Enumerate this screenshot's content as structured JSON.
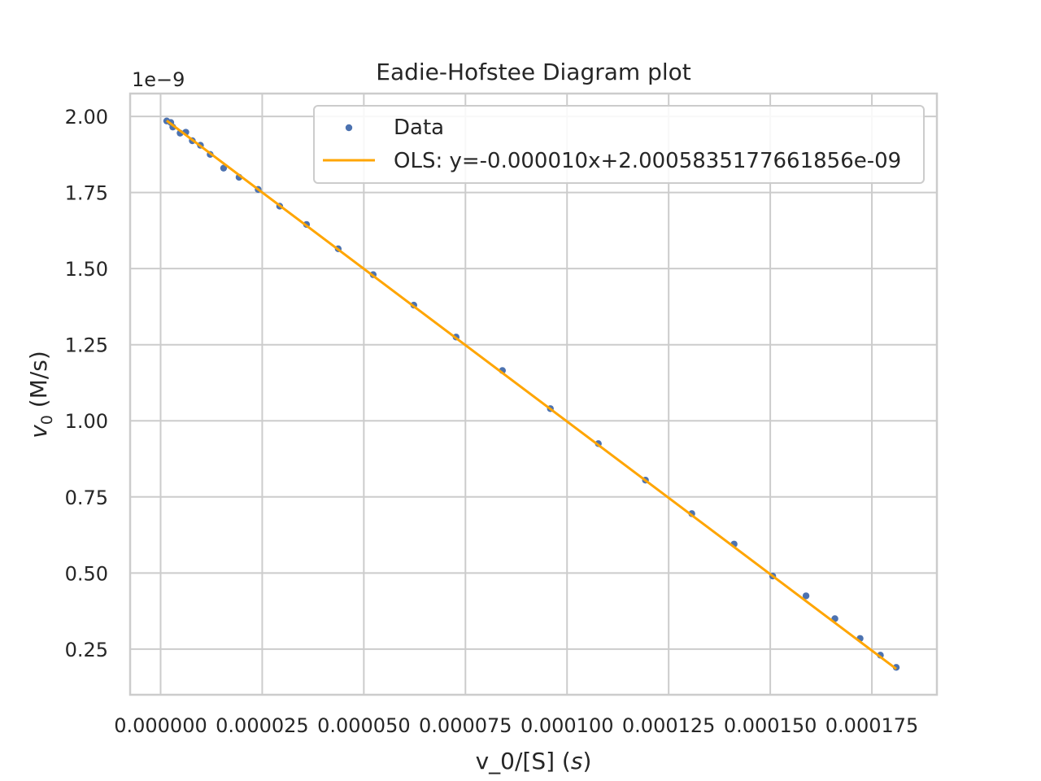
{
  "chart_data": {
    "type": "scatter",
    "title": "Eadie-Hofstee Diagram plot",
    "xlabel": "v_0/[S] ($s$)",
    "xlabel_parts": {
      "pre": "v_0/[S] (",
      "italic": "s",
      "post": ")"
    },
    "ylabel": "$v_0$ (M/s)",
    "ylabel_parts": {
      "var": "v",
      "sub": "0",
      "rest": " (M/s)"
    },
    "y_offset_text": "1e−9",
    "xlim": [
      -7.5e-06,
      0.000191
    ],
    "ylim": [
      0.1,
      2.075
    ],
    "y_scale_exponent": -9,
    "grid": true,
    "legend_position": "upper-right",
    "x_ticks": [
      {
        "value": 0.0,
        "label": "0.000000"
      },
      {
        "value": 2.5e-05,
        "label": "0.000025"
      },
      {
        "value": 5e-05,
        "label": "0.000050"
      },
      {
        "value": 7.5e-05,
        "label": "0.000075"
      },
      {
        "value": 0.0001,
        "label": "0.000100"
      },
      {
        "value": 0.000125,
        "label": "0.000125"
      },
      {
        "value": 0.00015,
        "label": "0.000150"
      },
      {
        "value": 0.000175,
        "label": "0.000175"
      }
    ],
    "y_ticks": [
      {
        "value": 0.25,
        "label": "0.25"
      },
      {
        "value": 0.5,
        "label": "0.50"
      },
      {
        "value": 0.75,
        "label": "0.75"
      },
      {
        "value": 1.0,
        "label": "1.00"
      },
      {
        "value": 1.25,
        "label": "1.25"
      },
      {
        "value": 1.5,
        "label": "1.50"
      },
      {
        "value": 1.75,
        "label": "1.75"
      },
      {
        "value": 2.0,
        "label": "2.00"
      }
    ],
    "series": [
      {
        "name": "Data",
        "kind": "scatter",
        "color": "#4c72b0",
        "x": [
          1.5e-06,
          2.5e-06,
          3e-06,
          4.8e-06,
          6.2e-06,
          7.8e-06,
          9.8e-06,
          1.22e-05,
          1.55e-05,
          1.93e-05,
          2.4e-05,
          2.93e-05,
          3.59e-05,
          4.37e-05,
          5.23e-05,
          6.23e-05,
          7.27e-05,
          8.41e-05,
          9.59e-05,
          0.0001077,
          0.0001193,
          0.0001307,
          0.0001411,
          0.0001506,
          0.0001588,
          0.0001659,
          0.0001721,
          0.0001771,
          0.000181
        ],
        "y": [
          1.985,
          1.98,
          1.965,
          1.945,
          1.948,
          1.92,
          1.905,
          1.875,
          1.83,
          1.8,
          1.76,
          1.705,
          1.645,
          1.565,
          1.48,
          1.38,
          1.275,
          1.165,
          1.04,
          0.925,
          0.805,
          0.695,
          0.595,
          0.49,
          0.425,
          0.35,
          0.285,
          0.23,
          0.19
        ]
      },
      {
        "name": "OLS: y=-0.000010x+2.0005835177661856e-09",
        "kind": "line",
        "color": "#ffa500",
        "x": [
          1.5e-06,
          0.000181
        ],
        "y": [
          1.986,
          0.185
        ]
      }
    ]
  }
}
